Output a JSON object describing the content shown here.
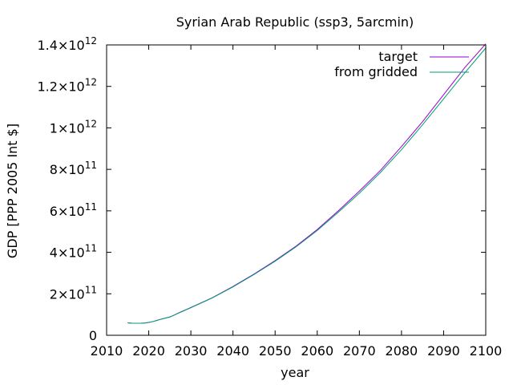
{
  "chart_data": {
    "type": "line",
    "title": "Syrian Arab Republic (ssp3, 5arcmin)",
    "xlabel": "year",
    "ylabel": "GDP [PPP 2005 Int $]",
    "xlim": [
      2010,
      2100
    ],
    "ylim": [
      0,
      1400000000000
    ],
    "grid": false,
    "legend_position": "top-right",
    "x_ticks": [
      {
        "value": 2010,
        "label": "2010"
      },
      {
        "value": 2020,
        "label": "2020"
      },
      {
        "value": 2030,
        "label": "2030"
      },
      {
        "value": 2040,
        "label": "2040"
      },
      {
        "value": 2050,
        "label": "2050"
      },
      {
        "value": 2060,
        "label": "2060"
      },
      {
        "value": 2070,
        "label": "2070"
      },
      {
        "value": 2080,
        "label": "2080"
      },
      {
        "value": 2090,
        "label": "2090"
      },
      {
        "value": 2100,
        "label": "2100"
      }
    ],
    "y_ticks": [
      {
        "value": 0,
        "mantissa": "0",
        "exponent": ""
      },
      {
        "value": 200000000000,
        "mantissa": "2×10",
        "exponent": "11"
      },
      {
        "value": 400000000000,
        "mantissa": "4×10",
        "exponent": "11"
      },
      {
        "value": 600000000000,
        "mantissa": "6×10",
        "exponent": "11"
      },
      {
        "value": 800000000000,
        "mantissa": "8×10",
        "exponent": "11"
      },
      {
        "value": 1000000000000,
        "mantissa": "1×10",
        "exponent": "12"
      },
      {
        "value": 1200000000000,
        "mantissa": "1.2×10",
        "exponent": "12"
      },
      {
        "value": 1400000000000,
        "mantissa": "1.4×10",
        "exponent": "12"
      }
    ],
    "series": [
      {
        "name": "target",
        "color": "#9400d3",
        "x": [
          2015,
          2016,
          2017,
          2018,
          2019,
          2020,
          2021,
          2022,
          2023,
          2024,
          2025,
          2026,
          2027,
          2028,
          2029,
          2030,
          2035,
          2040,
          2045,
          2050,
          2055,
          2060,
          2065,
          2070,
          2075,
          2080,
          2085,
          2090,
          2095,
          2100
        ],
        "values": [
          60000000000,
          58000000000,
          58000000000,
          58000000000,
          59000000000,
          62000000000,
          66000000000,
          72000000000,
          78000000000,
          83000000000,
          88000000000,
          97000000000,
          107000000000,
          116000000000,
          125000000000,
          134000000000,
          180000000000,
          235000000000,
          295000000000,
          360000000000,
          430000000000,
          510000000000,
          600000000000,
          695000000000,
          795000000000,
          910000000000,
          1030000000000,
          1160000000000,
          1290000000000,
          1405000000000
        ]
      },
      {
        "name": "from gridded",
        "color": "#009e73",
        "x": [
          2015,
          2016,
          2017,
          2018,
          2019,
          2020,
          2021,
          2022,
          2023,
          2024,
          2025,
          2026,
          2027,
          2028,
          2029,
          2030,
          2035,
          2040,
          2045,
          2050,
          2055,
          2060,
          2065,
          2070,
          2075,
          2080,
          2085,
          2090,
          2095,
          2100
        ],
        "values": [
          60000000000,
          58000000000,
          58000000000,
          58000000000,
          59000000000,
          62000000000,
          66000000000,
          72000000000,
          78000000000,
          83000000000,
          88000000000,
          97000000000,
          106000000000,
          115000000000,
          124000000000,
          133000000000,
          179000000000,
          233000000000,
          293000000000,
          357000000000,
          427000000000,
          505000000000,
          593000000000,
          685000000000,
          785000000000,
          895000000000,
          1015000000000,
          1140000000000,
          1265000000000,
          1385000000000
        ]
      }
    ]
  }
}
